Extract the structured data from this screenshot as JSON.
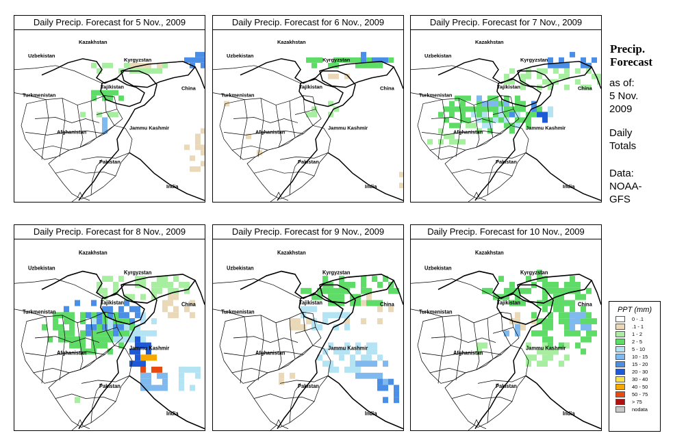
{
  "panels": [
    {
      "title": "Daily Precip. Forecast for  5 Nov., 2009",
      "day": 5
    },
    {
      "title": "Daily Precip. Forecast for  6 Nov., 2009",
      "day": 6
    },
    {
      "title": "Daily Precip. Forecast for  7 Nov., 2009",
      "day": 7
    },
    {
      "title": "Daily Precip. Forecast for  8 Nov., 2009",
      "day": 8
    },
    {
      "title": "Daily Precip. Forecast for  9 Nov., 2009",
      "day": 9
    },
    {
      "title": "Daily Precip. Forecast for  10 Nov., 2009",
      "day": 10
    }
  ],
  "map_labels": {
    "kazakhstan": "Kazakhstan",
    "uzbekistan": "Uzbekistan",
    "kyrgyzstan": "Kyrgyzstan",
    "tajikistan": "Tajikistan",
    "turkmenistan": "Turkmenistan",
    "china": "China",
    "afghanistan": "Afghanistan",
    "jammu_kashmir": "Jammu Kashmir",
    "pakistan": "Pakistan",
    "india": "India"
  },
  "sidebar": {
    "title": "Precip.\nForecast",
    "as_of": "as of:\n5 Nov.\n2009",
    "totals": "Daily\nTotals",
    "source": "Data:\nNOAA-\nGFS"
  },
  "legend": {
    "title": "PPT (mm)",
    "items": [
      {
        "label": "0 - .1",
        "color": "#ffffff"
      },
      {
        "label": ".1 - 1",
        "color": "#ead9b8"
      },
      {
        "label": "1 - 2",
        "color": "#a8eea0"
      },
      {
        "label": "2 - 5",
        "color": "#5fdc68"
      },
      {
        "label": "5 - 10",
        "color": "#b4e4f4"
      },
      {
        "label": "10 - 15",
        "color": "#7fb9ee"
      },
      {
        "label": "15 - 20",
        "color": "#4a8ee6"
      },
      {
        "label": "20 - 30",
        "color": "#1e5ad6"
      },
      {
        "label": "30 - 40",
        "color": "#f6e24a"
      },
      {
        "label": "40 - 50",
        "color": "#f6a800"
      },
      {
        "label": "50 - 75",
        "color": "#e84a10"
      },
      {
        "label": "> 75",
        "color": "#b01010"
      },
      {
        "label": "nodata",
        "color": "#c8c8c8"
      }
    ]
  }
}
